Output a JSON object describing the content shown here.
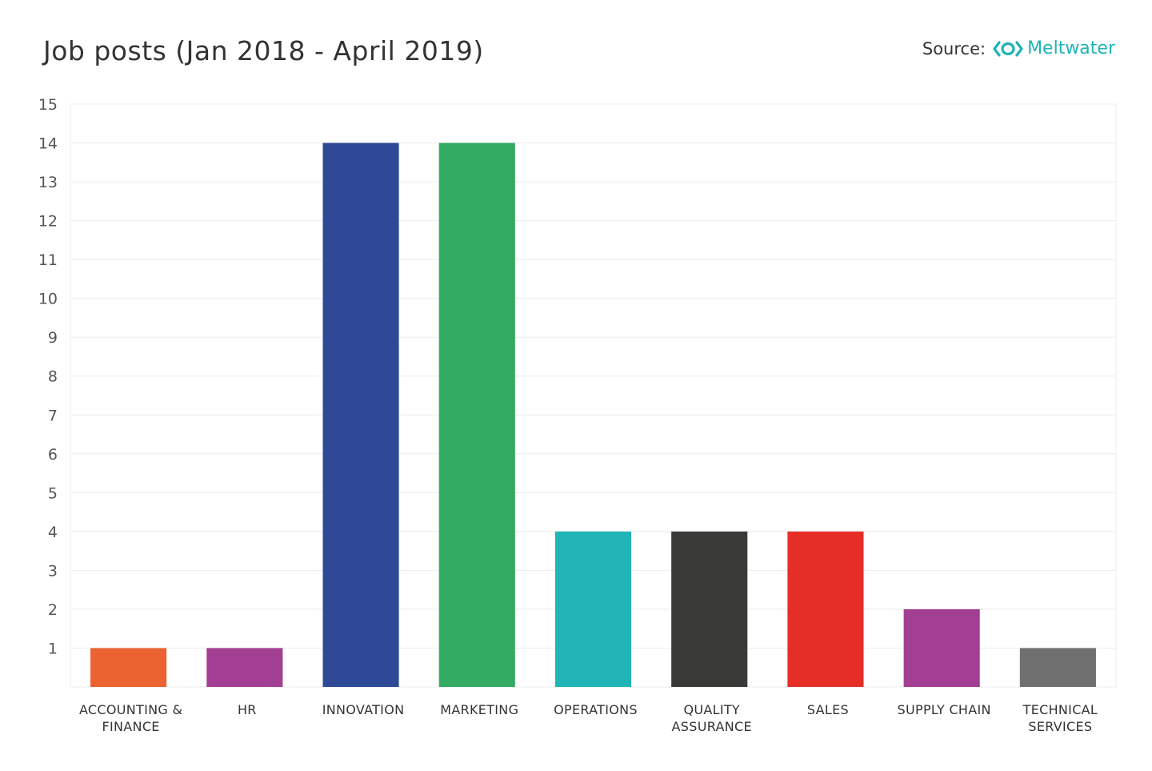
{
  "header": {
    "title": "Job posts  (Jan 2018 - April 2019)",
    "source_label": "Source:",
    "brand_name": "Meltwater",
    "brand_icon": "meltwater-logo-icon",
    "brand_color": "#1fb3b8"
  },
  "chart_data": {
    "type": "bar",
    "title": "Job posts  (Jan 2018 - April 2019)",
    "xlabel": "",
    "ylabel": "",
    "ylim": [
      0,
      15
    ],
    "yticks": [
      1,
      2,
      3,
      4,
      5,
      6,
      7,
      8,
      9,
      10,
      11,
      12,
      13,
      14,
      15
    ],
    "grid": true,
    "categories": [
      [
        "ACCOUNTING &",
        "FINANCE"
      ],
      [
        "HR"
      ],
      [
        "INNOVATION"
      ],
      [
        "MARKETING"
      ],
      [
        "OPERATIONS"
      ],
      [
        "QUALITY",
        "ASSURANCE"
      ],
      [
        "SALES"
      ],
      [
        "SUPPLY CHAIN"
      ],
      [
        "TECHNICAL",
        "SERVICES"
      ]
    ],
    "values": [
      1,
      1,
      14,
      14,
      4,
      4,
      4,
      2,
      1
    ],
    "colors": [
      "#ea6331",
      "#a33f92",
      "#2e4a97",
      "#34ab63",
      "#22b5b8",
      "#3a3a38",
      "#e52e28",
      "#a33f92",
      "#707070"
    ]
  }
}
